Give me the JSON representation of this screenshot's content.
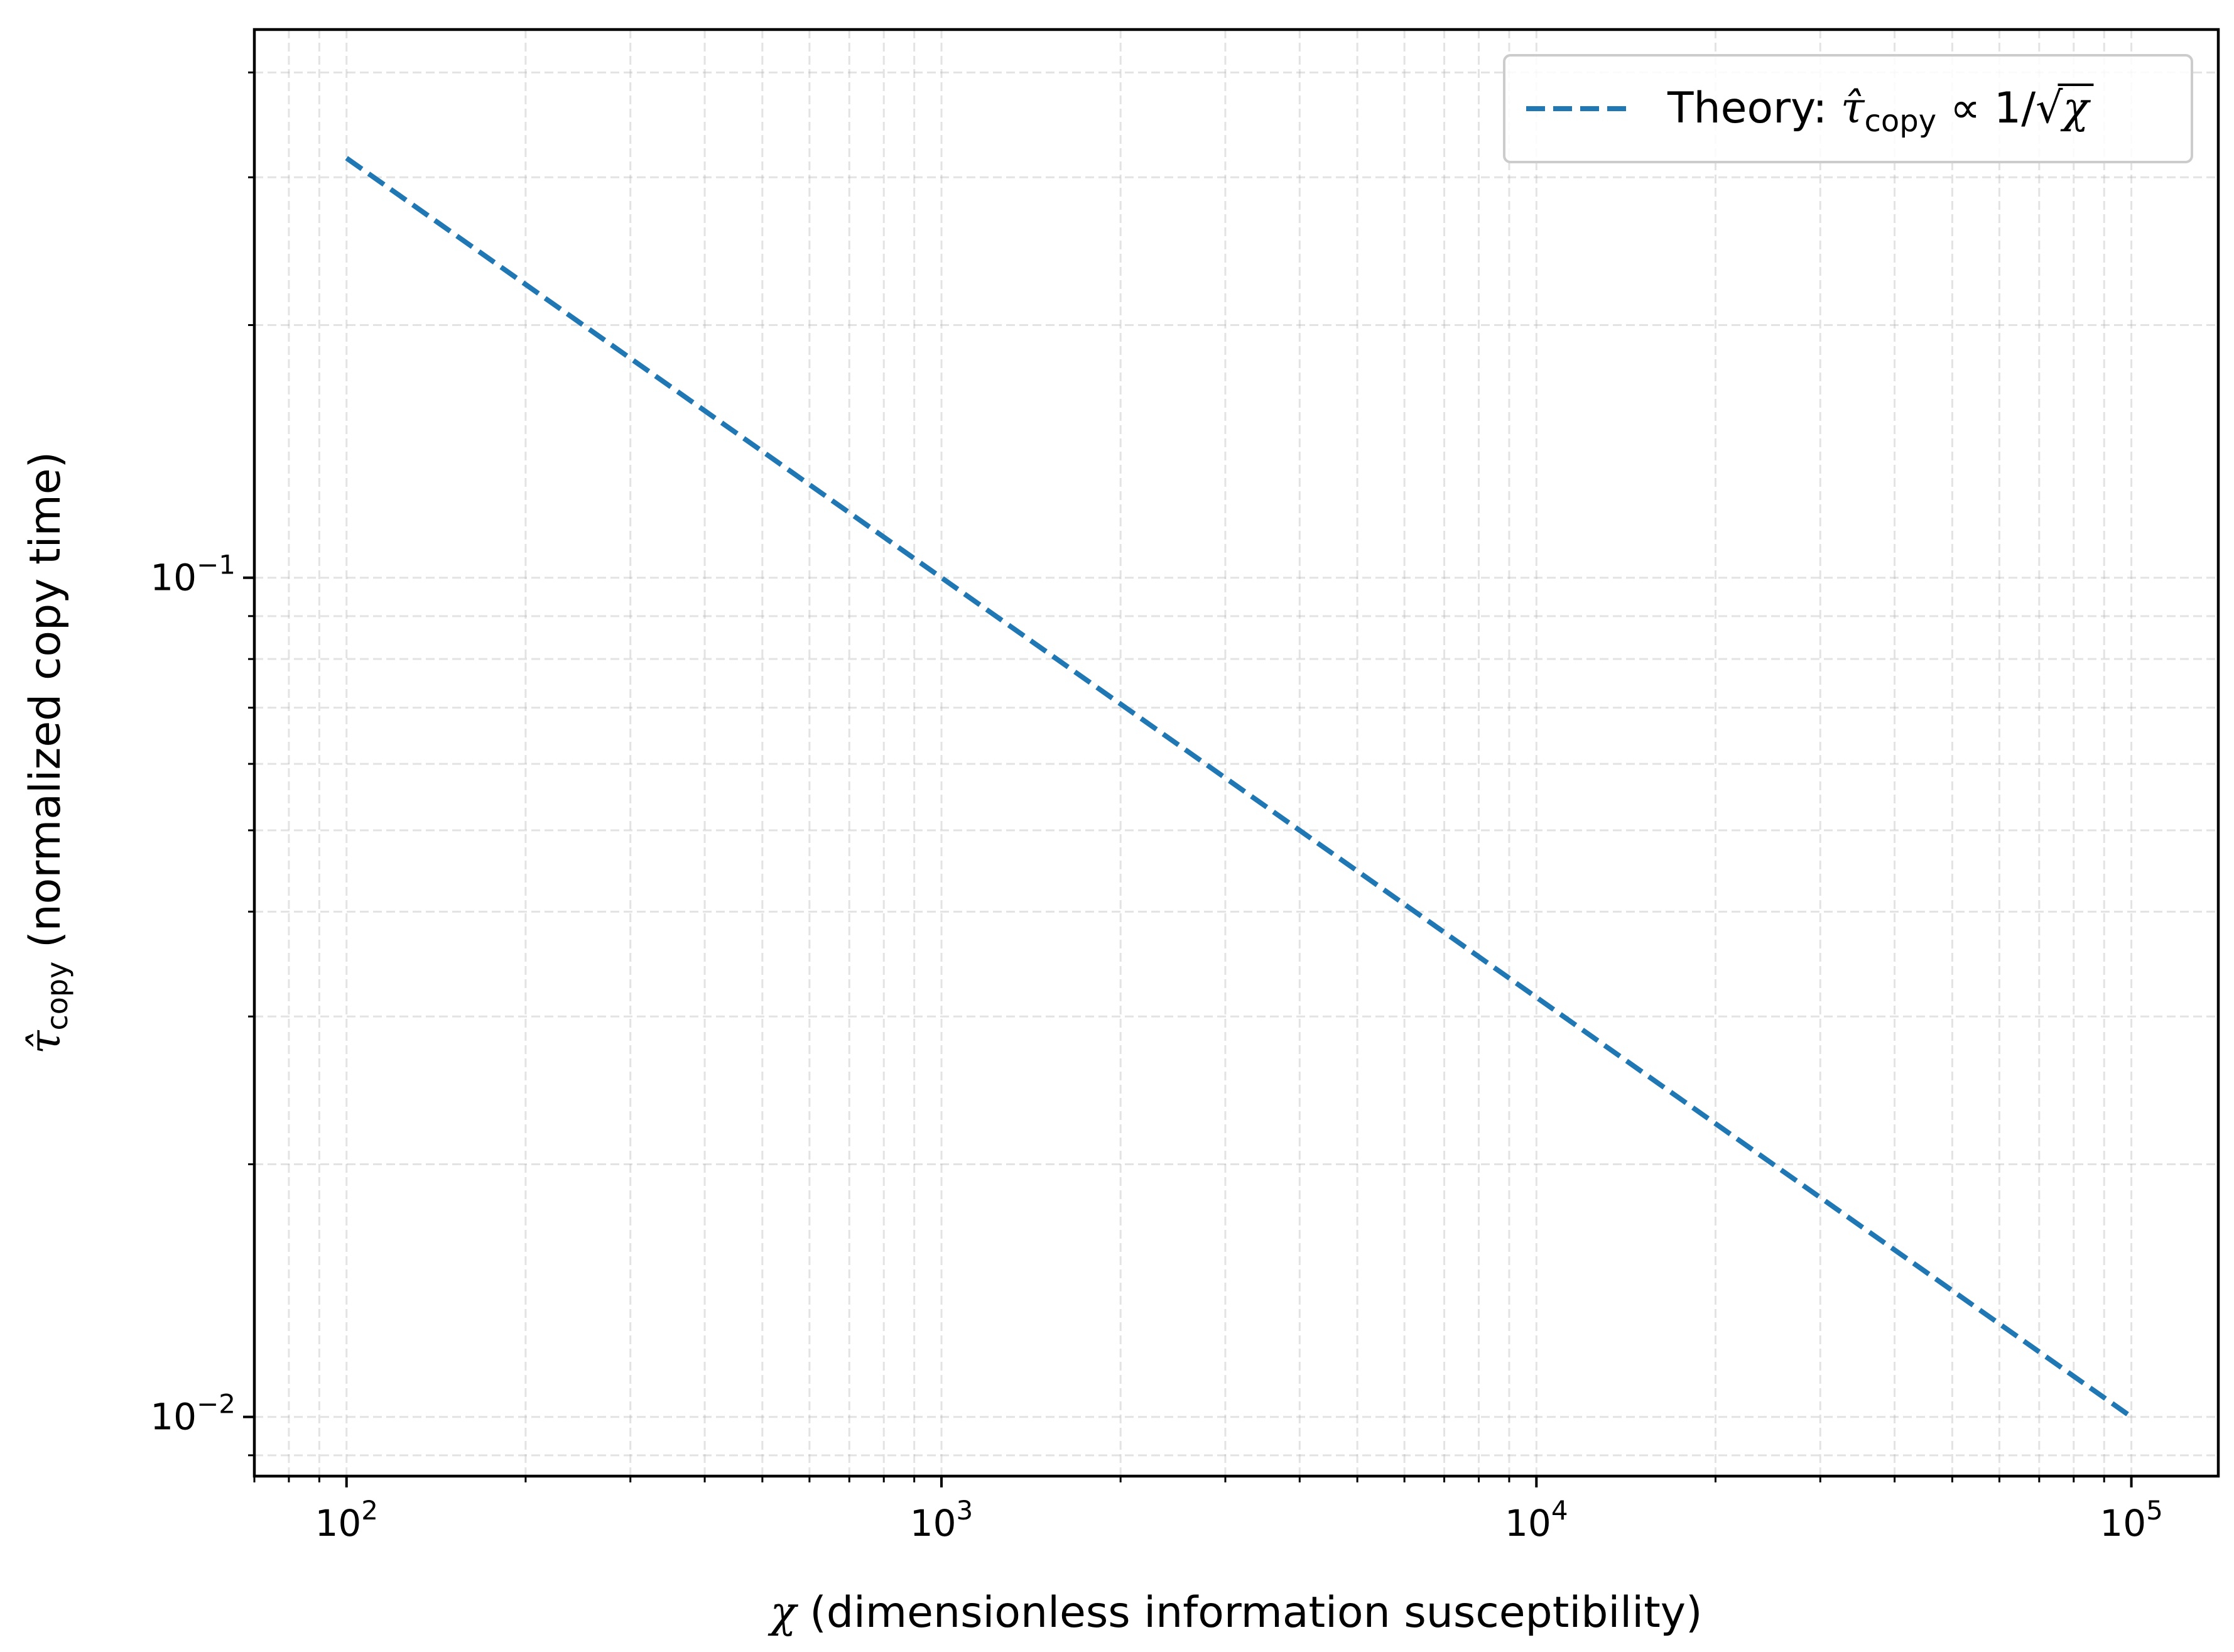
{
  "chart_data": {
    "type": "line",
    "title": "",
    "x_scale": "log",
    "y_scale": "log",
    "xlim": [
      70,
      140000
    ],
    "ylim": [
      0.0085,
      0.45
    ],
    "grid": true,
    "grid_minor": true,
    "x_ticks": [
      {
        "value": 100,
        "base": "10",
        "exp": "2"
      },
      {
        "value": 1000,
        "base": "10",
        "exp": "3"
      },
      {
        "value": 10000,
        "base": "10",
        "exp": "4"
      },
      {
        "value": 100000,
        "base": "10",
        "exp": "5"
      }
    ],
    "y_ticks": [
      {
        "value": 0.01,
        "base": "10",
        "exp": "−2"
      },
      {
        "value": 0.1,
        "base": "10",
        "exp": "−1"
      }
    ],
    "xlabel": {
      "symbol": "χ",
      "text": " (dimensionless information susceptibility)"
    },
    "ylabel": {
      "symbol": "τ̂",
      "sub": "copy",
      "text": " (normalized copy time)"
    },
    "legend": {
      "position": "top-right",
      "prefix": "Theory: ",
      "tau": "τ̂",
      "sub": "copy",
      "relation": " ∝ 1/",
      "chi": "χ"
    },
    "series": [
      {
        "name": "Theory: τ̂copy ∝ 1/√χ",
        "color": "#1f77b4",
        "style": "dashed",
        "points": [
          {
            "x": 100,
            "y": 0.3162
          },
          {
            "x": 1000,
            "y": 0.1
          },
          {
            "x": 10000,
            "y": 0.03162
          },
          {
            "x": 100000,
            "y": 0.01
          }
        ]
      }
    ]
  }
}
